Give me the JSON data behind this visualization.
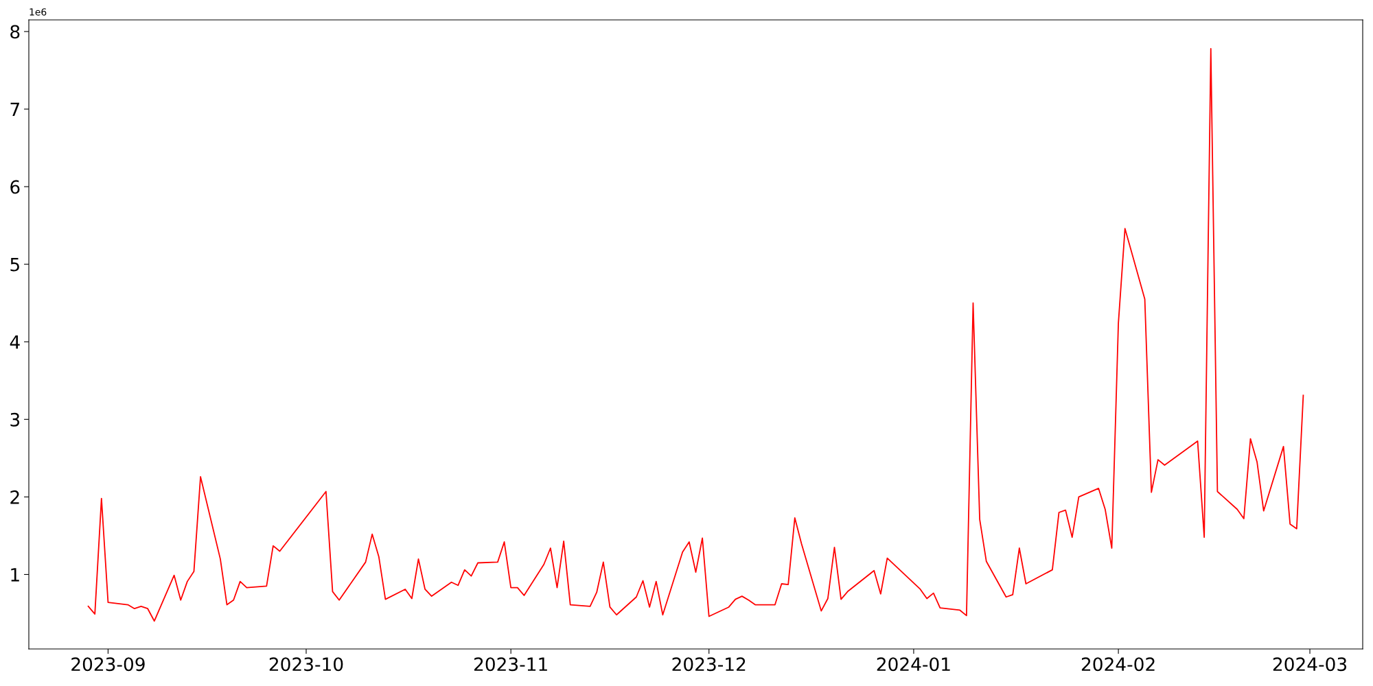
{
  "chart_data": {
    "type": "line",
    "x": [
      "2023-08-29",
      "2023-08-30",
      "2023-08-31",
      "2023-09-01",
      "2023-09-04",
      "2023-09-05",
      "2023-09-06",
      "2023-09-07",
      "2023-09-08",
      "2023-09-11",
      "2023-09-12",
      "2023-09-13",
      "2023-09-14",
      "2023-09-15",
      "2023-09-18",
      "2023-09-19",
      "2023-09-20",
      "2023-09-21",
      "2023-09-22",
      "2023-09-25",
      "2023-09-26",
      "2023-09-27",
      "2023-10-04",
      "2023-10-05",
      "2023-10-06",
      "2023-10-10",
      "2023-10-11",
      "2023-10-12",
      "2023-10-13",
      "2023-10-16",
      "2023-10-17",
      "2023-10-18",
      "2023-10-19",
      "2023-10-20",
      "2023-10-23",
      "2023-10-24",
      "2023-10-25",
      "2023-10-26",
      "2023-10-27",
      "2023-10-30",
      "2023-10-31",
      "2023-11-01",
      "2023-11-02",
      "2023-11-03",
      "2023-11-06",
      "2023-11-07",
      "2023-11-08",
      "2023-11-09",
      "2023-11-10",
      "2023-11-13",
      "2023-11-14",
      "2023-11-15",
      "2023-11-16",
      "2023-11-17",
      "2023-11-20",
      "2023-11-21",
      "2023-11-22",
      "2023-11-23",
      "2023-11-24",
      "2023-11-27",
      "2023-11-28",
      "2023-11-29",
      "2023-11-30",
      "2023-12-01",
      "2023-12-04",
      "2023-12-05",
      "2023-12-06",
      "2023-12-07",
      "2023-12-08",
      "2023-12-11",
      "2023-12-12",
      "2023-12-13",
      "2023-12-14",
      "2023-12-15",
      "2023-12-18",
      "2023-12-19",
      "2023-12-20",
      "2023-12-21",
      "2023-12-22",
      "2023-12-26",
      "2023-12-27",
      "2023-12-28",
      "2024-01-02",
      "2024-01-03",
      "2024-01-04",
      "2024-01-05",
      "2024-01-08",
      "2024-01-09",
      "2024-01-10",
      "2024-01-11",
      "2024-01-12",
      "2024-01-15",
      "2024-01-16",
      "2024-01-17",
      "2024-01-18",
      "2024-01-22",
      "2024-01-23",
      "2024-01-24",
      "2024-01-25",
      "2024-01-26",
      "2024-01-29",
      "2024-01-30",
      "2024-01-31",
      "2024-02-01",
      "2024-02-02",
      "2024-02-05",
      "2024-02-06",
      "2024-02-07",
      "2024-02-08",
      "2024-02-13",
      "2024-02-14",
      "2024-02-15",
      "2024-02-16",
      "2024-02-19",
      "2024-02-20",
      "2024-02-21",
      "2024-02-22",
      "2024-02-23",
      "2024-02-26",
      "2024-02-27",
      "2024-02-28",
      "2024-02-29"
    ],
    "series": [
      {
        "color": "#ff0000",
        "values": [
          0.59,
          0.49,
          1.98,
          0.64,
          0.61,
          0.56,
          0.59,
          0.56,
          0.4,
          0.99,
          0.67,
          0.91,
          1.04,
          2.26,
          1.2,
          0.61,
          0.67,
          0.91,
          0.83,
          0.85,
          1.37,
          1.3,
          2.07,
          0.78,
          0.67,
          1.16,
          1.52,
          1.23,
          0.68,
          0.81,
          0.69,
          1.2,
          0.81,
          0.72,
          0.9,
          0.86,
          1.06,
          0.98,
          1.15,
          1.16,
          1.42,
          0.83,
          0.83,
          0.73,
          1.13,
          1.34,
          0.83,
          1.43,
          0.61,
          0.59,
          0.77,
          1.16,
          0.58,
          0.48,
          0.71,
          0.92,
          0.58,
          0.91,
          0.48,
          1.29,
          1.42,
          1.03,
          1.47,
          0.46,
          0.58,
          0.68,
          0.72,
          0.67,
          0.61,
          0.61,
          0.88,
          0.87,
          1.73,
          1.4,
          0.53,
          0.69,
          1.35,
          0.68,
          0.78,
          1.05,
          0.75,
          1.21,
          0.81,
          0.69,
          0.76,
          0.57,
          0.54,
          0.47,
          4.5,
          1.71,
          1.17,
          0.71,
          0.74,
          1.34,
          0.88,
          1.06,
          1.8,
          1.83,
          1.48,
          2.0,
          2.11,
          1.84,
          1.34,
          4.24,
          5.46,
          4.55,
          2.06,
          2.48,
          2.41,
          2.72,
          1.48,
          7.78,
          2.07,
          1.84,
          1.72,
          2.75,
          2.45,
          1.82,
          2.65,
          1.65,
          1.59,
          3.31
        ]
      }
    ],
    "xlim": [
      "2023-08-20",
      "2024-03-09"
    ],
    "xticks": [
      {
        "value": "2023-09-01",
        "label": "2023-09"
      },
      {
        "value": "2023-10-01",
        "label": "2023-10"
      },
      {
        "value": "2023-11-01",
        "label": "2023-11"
      },
      {
        "value": "2023-12-01",
        "label": "2023-12"
      },
      {
        "value": "2024-01-01",
        "label": "2024-01"
      },
      {
        "value": "2024-02-01",
        "label": "2024-02"
      },
      {
        "value": "2024-03-01",
        "label": "2024-03"
      }
    ],
    "ylim": [
      0.04,
      8.15
    ],
    "yticks": [
      1,
      2,
      3,
      4,
      5,
      6,
      7,
      8
    ],
    "annotations": [
      "1e6"
    ]
  }
}
